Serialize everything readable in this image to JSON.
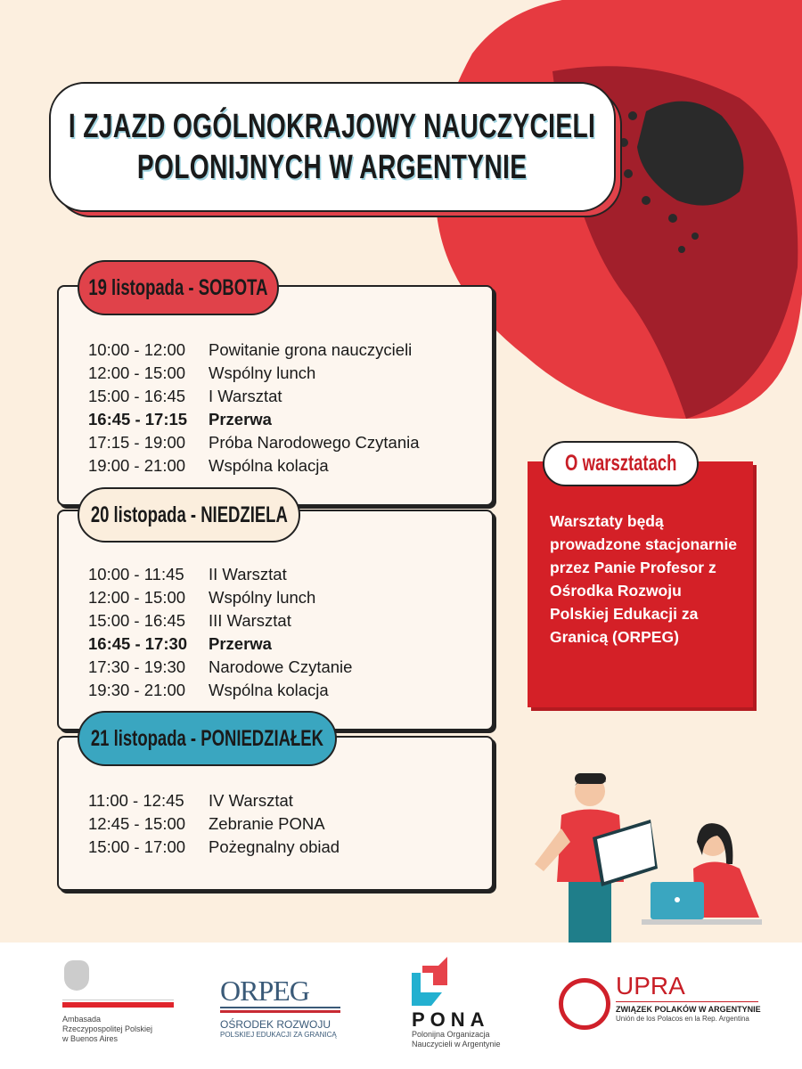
{
  "title": {
    "line1": "I ZJAZD OGÓLNOKRAJOWY NAUCZYCIELI",
    "line2": "POLONIJNYCH W ARGENTYNIE"
  },
  "days": [
    {
      "label": "19 listopada - SOBOTA",
      "badge_color": "#e0424a",
      "rows": [
        {
          "time": "10:00 - 12:00",
          "activity": "Powitanie grona nauczycieli",
          "bold": false
        },
        {
          "time": "12:00 - 15:00",
          "activity": "Wspólny lunch",
          "bold": false
        },
        {
          "time": "15:00 - 16:45",
          "activity": "I Warsztat",
          "bold": false
        },
        {
          "time": "16:45 - 17:15",
          "activity": "Przerwa",
          "bold": true
        },
        {
          "time": "17:15 - 19:00",
          "activity": "Próba Narodowego Czytania",
          "bold": false
        },
        {
          "time": "19:00 - 21:00",
          "activity": "Wspólna kolacja",
          "bold": false
        }
      ]
    },
    {
      "label": "20 listopada - NIEDZIELA",
      "badge_color": "#fbeedd",
      "rows": [
        {
          "time": "10:00 - 11:45",
          "activity": "II Warsztat",
          "bold": false
        },
        {
          "time": "12:00 - 15:00",
          "activity": "Wspólny lunch",
          "bold": false
        },
        {
          "time": "15:00 - 16:45",
          "activity": "III Warsztat",
          "bold": false
        },
        {
          "time": "16:45 - 17:30",
          "activity": "Przerwa",
          "bold": true
        },
        {
          "time": "17:30 - 19:30",
          "activity": "Narodowe Czytanie",
          "bold": false
        },
        {
          "time": "19:30 - 21:00",
          "activity": "Wspólna kolacja",
          "bold": false
        }
      ]
    },
    {
      "label": "21 listopada - PONIEDZIAŁEK",
      "badge_color": "#3aa6c0",
      "rows": [
        {
          "time": "11:00 - 12:45",
          "activity": "IV Warsztat",
          "bold": false
        },
        {
          "time": "12:45 - 15:00",
          "activity": "Zebranie PONA",
          "bold": false
        },
        {
          "time": "15:00 - 17:00",
          "activity": "Pożegnalny obiad",
          "bold": false
        }
      ]
    }
  ],
  "info": {
    "heading": "O warsztatach",
    "text": "Warsztaty będą prowadzone stacjonarnie przez Panie Profesor z Ośrodka Rozwoju Polskiej Edukacji za Granicą (ORPEG)",
    "color": "#d42027"
  },
  "logos": {
    "embassy": {
      "line1": "Ambasada",
      "line2": "Rzeczypospolitej Polskiej",
      "line3": "w Buenos Aires"
    },
    "orpeg": {
      "name": "ORPEG",
      "line1": "OŚRODEK ROZWOJU",
      "line2": "POLSKIEJ EDUKACJI ZA GRANICĄ"
    },
    "pona": {
      "name": "PONA",
      "line1": "Polonijna Organizacja",
      "line2": "Nauczycieli w Argentynie"
    },
    "upra": {
      "name": "UPRA",
      "line1": "ZWIĄZEK POLAKÓW W ARGENTYNIE",
      "line2": "Unión de los Polacos en la Rep. Argentina"
    }
  }
}
